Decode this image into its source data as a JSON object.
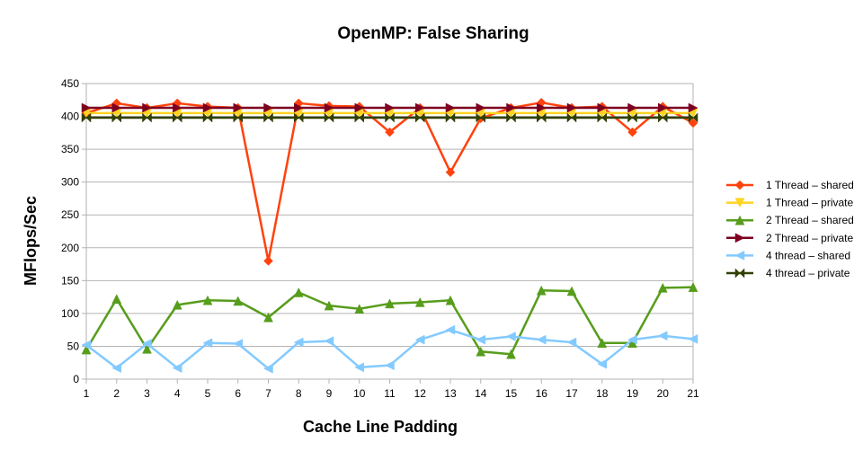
{
  "chart_data": {
    "type": "line",
    "title": "OpenMP: False Sharing",
    "xlabel": "Cache Line Padding",
    "ylabel": "MFlops/Sec",
    "categories": [
      "1",
      "2",
      "3",
      "4",
      "5",
      "6",
      "7",
      "8",
      "9",
      "10",
      "11",
      "12",
      "13",
      "14",
      "15",
      "16",
      "17",
      "18",
      "19",
      "20",
      "21"
    ],
    "ylim": [
      0,
      450
    ],
    "yticks": [
      0,
      50,
      100,
      150,
      200,
      250,
      300,
      350,
      400,
      450
    ],
    "grid": true,
    "legend_position": "right",
    "series": [
      {
        "name": "1 Thread – shared",
        "color": "#ff420e",
        "marker": "diamond",
        "values": [
          405,
          420,
          413,
          420,
          415,
          413,
          180,
          420,
          416,
          415,
          376,
          413,
          315,
          397,
          413,
          421,
          413,
          415,
          376,
          415,
          390
        ]
      },
      {
        "name": "1 Thread – private",
        "color": "#ffd320",
        "marker": "triangle-down",
        "values": [
          405,
          405,
          405,
          405,
          405,
          405,
          405,
          405,
          405,
          405,
          405,
          405,
          405,
          405,
          405,
          405,
          405,
          405,
          405,
          405,
          405
        ]
      },
      {
        "name": "2 Thread – shared",
        "color": "#579d1c",
        "marker": "triangle-up",
        "values": [
          45,
          122,
          46,
          113,
          120,
          119,
          94,
          132,
          112,
          107,
          115,
          117,
          120,
          42,
          38,
          135,
          134,
          55,
          55,
          139,
          140
        ]
      },
      {
        "name": "2 Thread – private",
        "color": "#7e0021",
        "marker": "triangle-right",
        "values": [
          413,
          413,
          413,
          413,
          413,
          413,
          413,
          413,
          413,
          413,
          413,
          413,
          413,
          413,
          413,
          413,
          413,
          413,
          413,
          413,
          413
        ]
      },
      {
        "name": "4 thread – shared",
        "color": "#83caff",
        "marker": "triangle-left",
        "values": [
          52,
          17,
          54,
          17,
          55,
          54,
          16,
          56,
          58,
          18,
          21,
          60,
          75,
          60,
          65,
          60,
          56,
          23,
          60,
          66,
          61
        ]
      },
      {
        "name": "4 thread – private",
        "color": "#314004",
        "marker": "bowtie",
        "values": [
          398,
          398,
          398,
          398,
          398,
          398,
          398,
          398,
          398,
          398,
          398,
          398,
          398,
          398,
          398,
          398,
          398,
          398,
          398,
          398,
          398
        ]
      }
    ]
  }
}
